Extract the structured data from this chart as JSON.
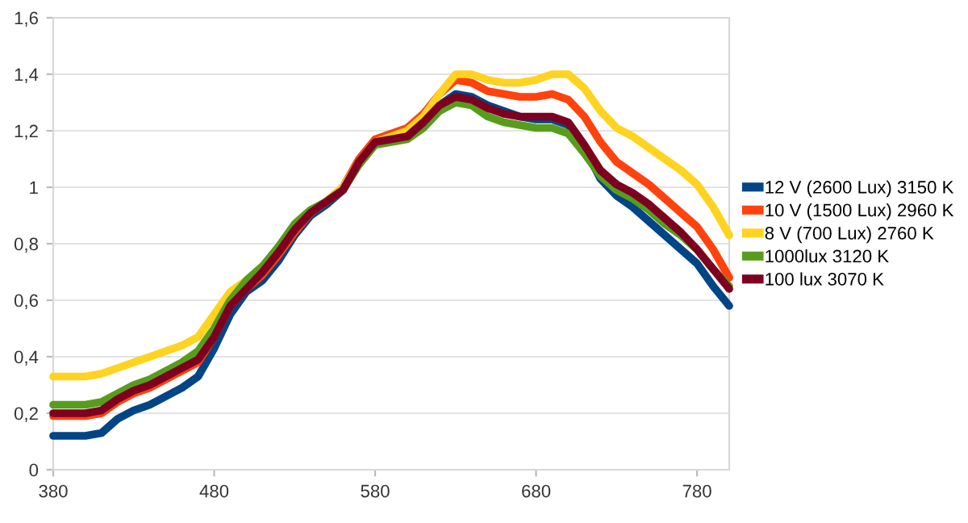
{
  "chart_data": {
    "type": "line",
    "x": [
      380,
      400,
      410,
      420,
      430,
      440,
      450,
      460,
      470,
      480,
      490,
      500,
      510,
      520,
      530,
      540,
      550,
      560,
      570,
      580,
      590,
      600,
      610,
      620,
      630,
      640,
      650,
      660,
      670,
      680,
      690,
      700,
      710,
      720,
      730,
      740,
      750,
      760,
      770,
      780,
      790,
      800
    ],
    "series": [
      {
        "name": "12 V (2600 Lux) 3150 K",
        "color": "#004586",
        "values": [
          0.12,
          0.12,
          0.13,
          0.18,
          0.21,
          0.23,
          0.26,
          0.29,
          0.33,
          0.43,
          0.55,
          0.63,
          0.67,
          0.74,
          0.83,
          0.9,
          0.94,
          0.99,
          1.09,
          1.16,
          1.18,
          1.19,
          1.23,
          1.29,
          1.33,
          1.32,
          1.29,
          1.27,
          1.25,
          1.24,
          1.24,
          1.22,
          1.14,
          1.03,
          0.97,
          0.93,
          0.88,
          0.83,
          0.78,
          0.73,
          0.65,
          0.58
        ]
      },
      {
        "name": "10 V (1500 Lux) 2960 K",
        "color": "#ff420e",
        "values": [
          0.19,
          0.19,
          0.2,
          0.24,
          0.27,
          0.29,
          0.32,
          0.35,
          0.38,
          0.47,
          0.58,
          0.64,
          0.69,
          0.76,
          0.84,
          0.91,
          0.95,
          1.0,
          1.1,
          1.17,
          1.19,
          1.21,
          1.26,
          1.33,
          1.38,
          1.37,
          1.34,
          1.33,
          1.32,
          1.32,
          1.33,
          1.31,
          1.25,
          1.16,
          1.09,
          1.05,
          1.01,
          0.96,
          0.91,
          0.86,
          0.78,
          0.68
        ]
      },
      {
        "name": "8 V (700 Lux) 2760 K",
        "color": "#ffd320",
        "values": [
          0.33,
          0.33,
          0.34,
          0.36,
          0.38,
          0.4,
          0.42,
          0.44,
          0.47,
          0.55,
          0.63,
          0.67,
          0.72,
          0.78,
          0.86,
          0.91,
          0.95,
          1.0,
          1.09,
          1.16,
          1.18,
          1.2,
          1.25,
          1.33,
          1.4,
          1.4,
          1.38,
          1.37,
          1.37,
          1.38,
          1.4,
          1.4,
          1.35,
          1.27,
          1.21,
          1.18,
          1.14,
          1.1,
          1.06,
          1.01,
          0.93,
          0.83
        ]
      },
      {
        "name": "1000lux 3120 K",
        "color": "#579d1c",
        "values": [
          0.23,
          0.23,
          0.24,
          0.27,
          0.3,
          0.32,
          0.35,
          0.38,
          0.42,
          0.5,
          0.6,
          0.67,
          0.72,
          0.79,
          0.87,
          0.92,
          0.95,
          0.99,
          1.08,
          1.15,
          1.16,
          1.17,
          1.21,
          1.27,
          1.3,
          1.29,
          1.25,
          1.23,
          1.22,
          1.21,
          1.21,
          1.19,
          1.12,
          1.04,
          0.99,
          0.96,
          0.92,
          0.87,
          0.83,
          0.78,
          0.71,
          0.65
        ]
      },
      {
        "name": "100 lux 3070 K",
        "color": "#7e0021",
        "values": [
          0.2,
          0.2,
          0.21,
          0.25,
          0.28,
          0.3,
          0.33,
          0.36,
          0.39,
          0.47,
          0.58,
          0.64,
          0.7,
          0.77,
          0.85,
          0.91,
          0.95,
          0.99,
          1.09,
          1.16,
          1.17,
          1.18,
          1.23,
          1.29,
          1.32,
          1.31,
          1.28,
          1.26,
          1.25,
          1.25,
          1.25,
          1.23,
          1.15,
          1.06,
          1.01,
          0.98,
          0.94,
          0.89,
          0.84,
          0.78,
          0.71,
          0.64
        ]
      }
    ],
    "xlim": [
      380,
      800
    ],
    "xticks": [
      380,
      480,
      580,
      680,
      780
    ],
    "ylim": [
      0,
      1.6
    ],
    "yticks": [
      0,
      {
        "value": 0.2,
        "label": "0,2"
      },
      {
        "value": 0.4,
        "label": "0,4"
      },
      {
        "value": 0.6,
        "label": "0,6"
      },
      {
        "value": 0.8,
        "label": "0,8"
      },
      1,
      {
        "value": 1.2,
        "label": "1,2"
      },
      {
        "value": 1.4,
        "label": "1,4"
      },
      {
        "value": 1.6,
        "label": "1,6"
      }
    ],
    "grid": "y",
    "legend": "right",
    "marker": "none",
    "line_style": "solid"
  }
}
